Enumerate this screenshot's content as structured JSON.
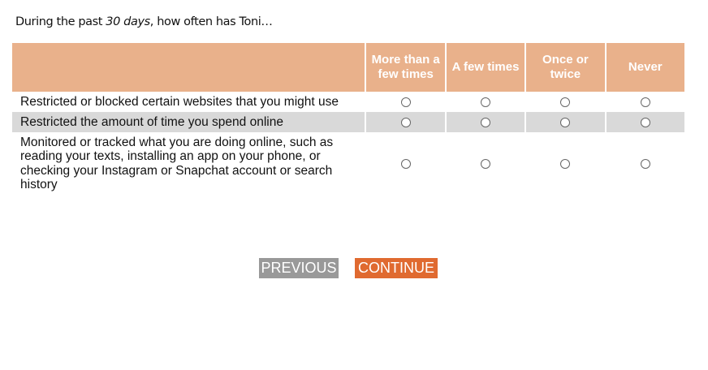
{
  "question": {
    "prefix": "During the past ",
    "emph": "30 days",
    "suffix": ", how often has Toni…"
  },
  "columns": [
    "More than a few times",
    "A few times",
    "Once or twice",
    "Never"
  ],
  "rows": [
    "Restricted or blocked certain websites that you might use",
    "Restricted the amount of time you spend online",
    "Monitored or tracked what you are doing online, such as reading your texts, installing an app on your phone, or checking your Instagram or Snapchat account or search history"
  ],
  "buttons": {
    "previous": "PREVIOUS",
    "continue": "CONTINUE"
  },
  "colors": {
    "header": "#e9b18b",
    "continue": "#e06a30",
    "previous": "#999999",
    "stripe": "#d9d9d9"
  }
}
